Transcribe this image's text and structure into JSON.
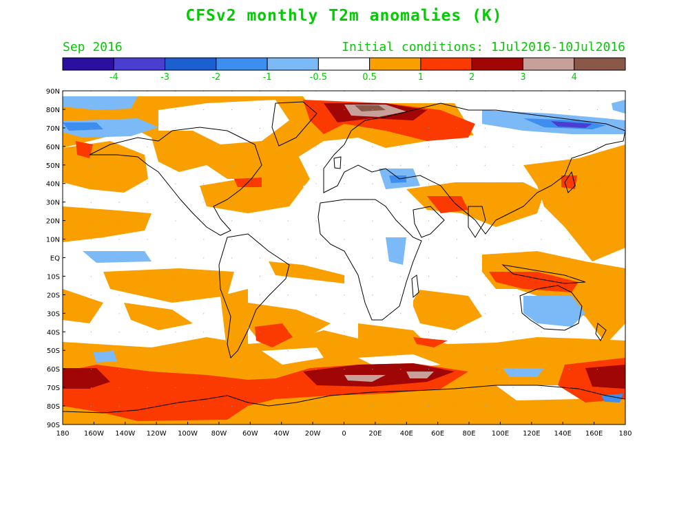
{
  "title": "CFSv2 monthly T2m anomalies (K)",
  "subtitle_left": "Sep 2016",
  "subtitle_right": "Initial conditions: 1Jul2016-10Jul2016",
  "colors": {
    "text": "#00cc00",
    "ocean_bg": "#ffffff",
    "coast": "#000000"
  },
  "colorbar": {
    "colors": [
      "#2b0fa0",
      "#4a3ed0",
      "#1c5fd0",
      "#3e8ef0",
      "#7cb9f7",
      "#ffffff",
      "#f9a000",
      "#fa3a00",
      "#a00606",
      "#c8a09a",
      "#8a5848"
    ],
    "labels": [
      "-4",
      "-3",
      "-2",
      "-1",
      "-0.5",
      "0.5",
      "1",
      "2",
      "3",
      "4"
    ]
  },
  "axes": {
    "lat_labels": [
      "90N",
      "80N",
      "70N",
      "60N",
      "50N",
      "40N",
      "30N",
      "20N",
      "10N",
      "EQ",
      "10S",
      "20S",
      "30S",
      "40S",
      "50S",
      "60S",
      "70S",
      "80S",
      "90S"
    ],
    "lon_labels": [
      "180",
      "160W",
      "140W",
      "120W",
      "100W",
      "80W",
      "60W",
      "40W",
      "20W",
      "0",
      "20E",
      "40E",
      "60E",
      "80E",
      "100E",
      "120E",
      "140E",
      "160E",
      "180"
    ]
  },
  "chart_data": {
    "type": "heatmap",
    "title": "CFSv2 monthly T2m anomalies (K)",
    "variable": "T2m anomalies",
    "units": "K",
    "valid_month": "Sep 2016",
    "initial_conditions": "1Jul2016-10Jul2016",
    "levels": [
      -4,
      -3,
      -2,
      -1,
      -0.5,
      0.5,
      1,
      2,
      3,
      4
    ],
    "lon_range": [
      -180,
      180
    ],
    "lat_range": [
      -90,
      90
    ]
  }
}
